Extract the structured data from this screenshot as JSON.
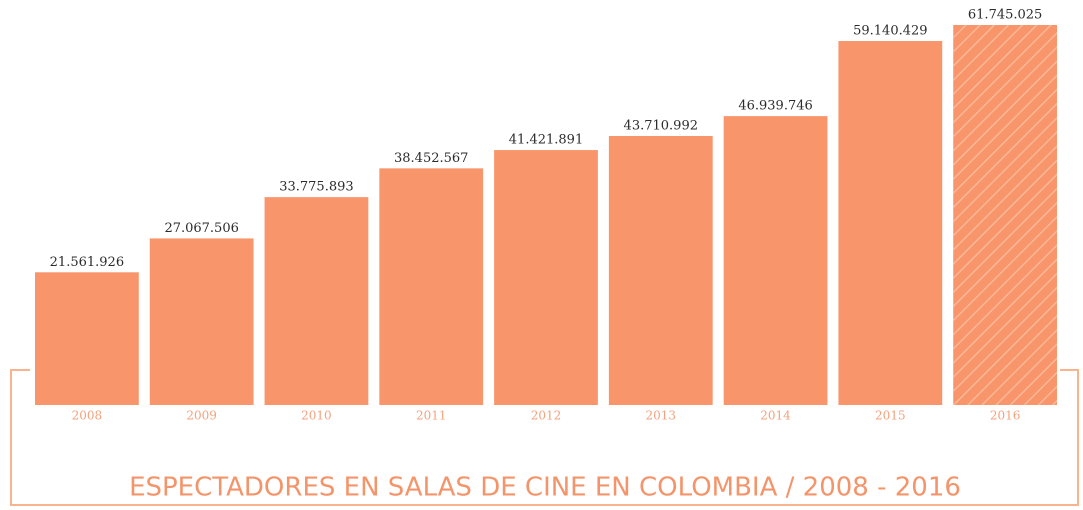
{
  "chart_data": {
    "type": "bar",
    "title": "ESPECTADORES EN SALAS DE CINE EN COLOMBIA / 2008 - 2016",
    "categories": [
      "2008",
      "2009",
      "2010",
      "2011",
      "2012",
      "2013",
      "2014",
      "2015",
      "2016"
    ],
    "values": [
      21561926,
      27067506,
      33775893,
      38452567,
      41421891,
      43710992,
      46939746,
      59140429,
      61745025
    ],
    "value_labels": [
      "21.561.926",
      "27.067.506",
      "33.775.893",
      "38.452.567",
      "41.421.891",
      "43.710.992",
      "46.939.746",
      "59.140.429",
      "61.745.025"
    ],
    "hatch": [
      false,
      false,
      false,
      false,
      false,
      false,
      false,
      false,
      true
    ],
    "color": "#f9956b"
  }
}
